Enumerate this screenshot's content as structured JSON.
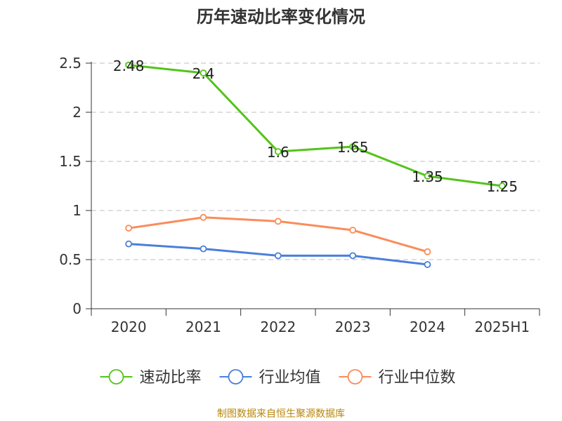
{
  "chart_data": {
    "type": "line",
    "title": "历年速动比率变化情况",
    "categories": [
      "2020",
      "2021",
      "2022",
      "2023",
      "2024",
      "2025H1"
    ],
    "ylim": [
      0,
      2.5
    ],
    "yticks": [
      0,
      0.5,
      1,
      1.5,
      2,
      2.5
    ],
    "ytick_labels": [
      "0",
      "0.5",
      "1",
      "1.5",
      "2",
      "2.5"
    ],
    "grid": true,
    "legend_position": "bottom",
    "series": [
      {
        "name": "速动比率",
        "color": "#52c41a",
        "values": [
          2.48,
          2.4,
          1.6,
          1.65,
          1.35,
          1.25
        ],
        "labels": [
          "2.48",
          "2.4",
          "1.6",
          "1.65",
          "1.35",
          "1.25"
        ],
        "show_labels": true
      },
      {
        "name": "行业均值",
        "color": "#4a7fdb",
        "values": [
          0.66,
          0.61,
          0.54,
          0.54,
          0.45,
          null
        ],
        "show_labels": false
      },
      {
        "name": "行业中位数",
        "color": "#fa8c5a",
        "values": [
          0.82,
          0.93,
          0.89,
          0.8,
          0.58,
          null
        ],
        "show_labels": false
      }
    ],
    "source_note": "制图数据来自恒生聚源数据库"
  }
}
